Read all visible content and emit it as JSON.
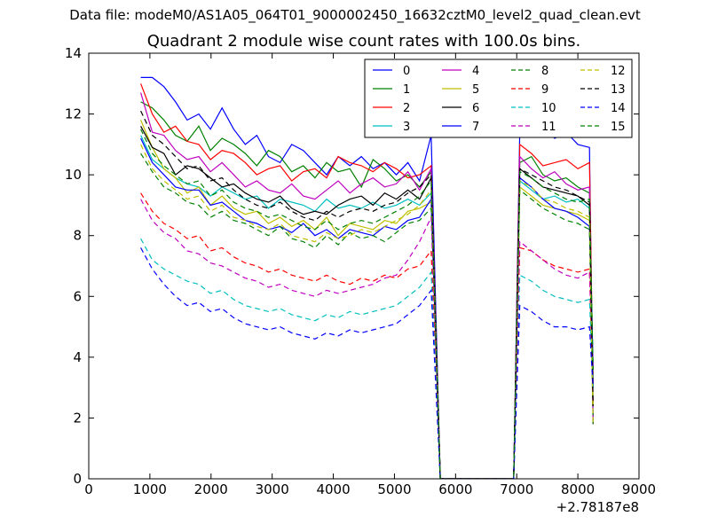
{
  "suptitle": "Data file: modeM0/AS1A05_064T01_9000002450_16632cztM0_level2_quad_clean.evt",
  "chart_data": {
    "type": "line",
    "title": "Quadrant 2 module wise count rates with 100.0s bins.",
    "xlabel": "",
    "ylabel": "",
    "xlim": [
      0,
      9000
    ],
    "ylim": [
      0,
      14
    ],
    "x_offset_label": "+2.78187e8",
    "x_ticks": [
      "0",
      "1000",
      "2000",
      "3000",
      "4000",
      "5000",
      "6000",
      "7000",
      "8000",
      "9000"
    ],
    "y_ticks": [
      "0",
      "2",
      "4",
      "6",
      "8",
      "10",
      "12",
      "14"
    ],
    "grid": false,
    "legend_position": "top-right",
    "series": [
      {
        "name": "0",
        "color": "#0000ff",
        "dash": "solid",
        "seg1": [
          13.2,
          13.2,
          12.9,
          12.4,
          11.8,
          12.0,
          11.5,
          12.2,
          11.5,
          11.0,
          11.3,
          10.6,
          10.4,
          11.0,
          10.8,
          10.4,
          10.0,
          10.6,
          10.3,
          10.6,
          10.2,
          10.4,
          10.0,
          10.4,
          9.8,
          11.3
        ],
        "seg2": [
          11.5,
          11.8,
          11.6,
          11.2,
          11.4,
          11.0,
          10.9
        ]
      },
      {
        "name": "1",
        "color": "#008000",
        "dash": "solid",
        "seg1": [
          12.4,
          12.2,
          11.8,
          11.3,
          11.1,
          11.6,
          10.8,
          11.2,
          11.0,
          10.7,
          10.3,
          10.8,
          10.6,
          10.1,
          10.3,
          9.9,
          10.4,
          10.1,
          10.2,
          9.6,
          10.5,
          10.2,
          9.8,
          10.0,
          9.6,
          10.1
        ],
        "seg2": [
          10.4,
          10.6,
          10.0,
          9.8,
          9.9,
          9.6,
          9.4
        ]
      },
      {
        "name": "2",
        "color": "#ff0000",
        "dash": "solid",
        "seg1": [
          13.0,
          12.0,
          11.4,
          11.6,
          11.1,
          11.0,
          10.5,
          10.8,
          10.7,
          10.4,
          10.0,
          10.2,
          10.3,
          9.8,
          10.1,
          10.2,
          9.9,
          10.6,
          10.4,
          10.3,
          10.1,
          10.4,
          10.2,
          9.9,
          10.0,
          10.3
        ],
        "seg2": [
          11.0,
          10.7,
          10.3,
          10.4,
          10.5,
          10.2,
          10.4
        ]
      },
      {
        "name": "3",
        "color": "#00bfbf",
        "dash": "solid",
        "seg1": [
          11.3,
          10.5,
          10.2,
          9.9,
          9.7,
          9.6,
          9.3,
          9.6,
          9.4,
          9.2,
          9.3,
          8.9,
          9.2,
          9.1,
          9.0,
          8.8,
          9.2,
          8.9,
          9.0,
          8.9,
          9.1,
          8.9,
          9.0,
          9.2,
          9.0,
          9.4
        ],
        "seg2": [
          9.8,
          9.5,
          9.2,
          9.3,
          9.1,
          9.2,
          8.9
        ]
      },
      {
        "name": "4",
        "color": "#bf00bf",
        "dash": "solid",
        "seg1": [
          12.7,
          11.4,
          11.3,
          10.8,
          10.5,
          10.6,
          10.1,
          10.4,
          10.0,
          9.6,
          9.8,
          9.5,
          9.4,
          9.7,
          9.3,
          9.2,
          9.5,
          9.8,
          9.4,
          9.7,
          9.9,
          9.6,
          9.7,
          10.1,
          9.5,
          10.2
        ],
        "seg2": [
          10.6,
          10.2,
          9.9,
          10.1,
          9.7,
          9.5,
          9.6
        ]
      },
      {
        "name": "5",
        "color": "#bfbf00",
        "dash": "solid",
        "seg1": [
          11.8,
          10.9,
          10.2,
          9.9,
          9.4,
          9.6,
          9.0,
          9.3,
          8.9,
          8.7,
          8.8,
          8.4,
          8.6,
          8.3,
          8.5,
          8.2,
          8.6,
          8.0,
          8.4,
          8.3,
          8.2,
          8.5,
          8.4,
          8.8,
          8.9,
          9.1
        ],
        "seg2": [
          9.6,
          9.3,
          9.0,
          8.9,
          8.8,
          8.7,
          8.5
        ]
      },
      {
        "name": "6",
        "color": "#000000",
        "dash": "solid",
        "seg1": [
          11.6,
          10.9,
          10.7,
          10.0,
          10.3,
          10.2,
          9.9,
          9.6,
          9.7,
          9.4,
          9.2,
          9.1,
          9.3,
          8.9,
          8.7,
          8.8,
          8.7,
          9.0,
          9.2,
          9.3,
          9.0,
          9.4,
          9.2,
          9.5,
          9.2,
          9.9
        ],
        "seg2": [
          10.2,
          9.9,
          9.6,
          9.5,
          9.4,
          9.3,
          9.0
        ]
      },
      {
        "name": "7",
        "color": "#0000ff",
        "dash": "solid",
        "seg1": [
          11.2,
          10.4,
          10.0,
          9.6,
          9.5,
          9.5,
          9.0,
          9.1,
          8.8,
          8.5,
          8.4,
          8.2,
          8.3,
          8.1,
          8.4,
          8.0,
          8.2,
          7.9,
          8.2,
          8.1,
          8.0,
          8.3,
          8.2,
          8.5,
          8.6,
          9.2
        ],
        "seg2": [
          9.9,
          9.6,
          9.2,
          8.9,
          8.8,
          8.6,
          8.3
        ]
      },
      {
        "name": "8",
        "color": "#008000",
        "dash": "dashed",
        "seg1": [
          10.7,
          10.1,
          9.6,
          9.4,
          9.1,
          9.0,
          8.6,
          8.8,
          8.5,
          8.4,
          8.2,
          8.0,
          8.3,
          7.9,
          7.8,
          7.6,
          8.0,
          7.7,
          8.1,
          7.9,
          8.0,
          7.8,
          8.1,
          8.4,
          8.5,
          8.9
        ],
        "seg2": [
          9.5,
          9.2,
          8.9,
          8.7,
          8.5,
          8.4,
          8.2
        ]
      },
      {
        "name": "9",
        "color": "#ff0000",
        "dash": "dashed",
        "seg1": [
          9.4,
          8.8,
          8.4,
          8.2,
          7.9,
          8.0,
          7.5,
          7.6,
          7.3,
          7.1,
          7.0,
          6.8,
          6.9,
          6.7,
          6.6,
          6.5,
          6.7,
          6.5,
          6.4,
          6.6,
          6.5,
          6.7,
          6.6,
          6.9,
          7.0,
          7.5
        ],
        "seg2": [
          7.6,
          7.5,
          7.2,
          7.0,
          6.9,
          6.8,
          6.9
        ]
      },
      {
        "name": "10",
        "color": "#00bfbf",
        "dash": "dashed",
        "seg1": [
          7.9,
          7.2,
          6.9,
          6.7,
          6.5,
          6.4,
          6.1,
          6.2,
          5.9,
          5.7,
          5.6,
          5.5,
          5.6,
          5.4,
          5.3,
          5.2,
          5.4,
          5.3,
          5.5,
          5.4,
          5.5,
          5.6,
          5.7,
          6.0,
          6.3,
          6.8
        ],
        "seg2": [
          6.7,
          6.5,
          6.2,
          6.0,
          5.9,
          5.8,
          5.9
        ]
      },
      {
        "name": "11",
        "color": "#bf00bf",
        "dash": "dashed",
        "seg1": [
          9.2,
          8.5,
          8.1,
          7.9,
          7.5,
          7.4,
          7.1,
          7.0,
          6.8,
          6.6,
          6.5,
          6.3,
          6.4,
          6.2,
          6.1,
          6.0,
          6.2,
          6.1,
          6.2,
          6.3,
          6.4,
          6.6,
          6.7,
          7.2,
          7.8,
          8.6
        ],
        "seg2": [
          7.8,
          7.5,
          7.2,
          6.9,
          6.7,
          6.6,
          6.8
        ]
      },
      {
        "name": "12",
        "color": "#bfbf00",
        "dash": "dashed",
        "seg1": [
          11.0,
          10.2,
          9.8,
          9.5,
          9.2,
          9.3,
          8.8,
          9.0,
          8.6,
          8.5,
          8.3,
          8.2,
          8.4,
          8.0,
          7.9,
          7.8,
          8.1,
          7.9,
          8.0,
          8.2,
          8.1,
          8.3,
          8.5,
          8.7,
          9.0,
          9.5
        ],
        "seg2": [
          9.8,
          9.6,
          9.2,
          9.1,
          8.9,
          8.8,
          8.6
        ]
      },
      {
        "name": "13",
        "color": "#000000",
        "dash": "dashed",
        "seg1": [
          12.1,
          11.3,
          11.0,
          10.6,
          10.2,
          10.3,
          9.8,
          9.9,
          9.5,
          9.2,
          9.0,
          8.9,
          9.1,
          8.8,
          8.6,
          8.5,
          8.8,
          8.6,
          8.8,
          8.9,
          8.8,
          9.0,
          9.1,
          9.4,
          9.6,
          10.0
        ],
        "seg2": [
          10.2,
          10.0,
          9.8,
          9.6,
          9.5,
          9.3,
          9.1
        ]
      },
      {
        "name": "14",
        "color": "#0000ff",
        "dash": "dashed",
        "seg1": [
          7.6,
          6.9,
          6.4,
          6.0,
          5.7,
          5.8,
          5.5,
          5.6,
          5.3,
          5.1,
          5.0,
          4.9,
          5.0,
          4.8,
          4.7,
          4.6,
          4.8,
          4.7,
          4.9,
          4.8,
          4.9,
          5.0,
          5.1,
          5.4,
          5.7,
          6.2
        ],
        "seg2": [
          5.7,
          5.5,
          5.2,
          5.0,
          5.0,
          4.9,
          5.0
        ]
      },
      {
        "name": "15",
        "color": "#008000",
        "dash": "dashed",
        "seg1": [
          11.5,
          10.7,
          10.3,
          10.0,
          9.7,
          9.8,
          9.3,
          9.5,
          9.1,
          8.9,
          8.8,
          8.6,
          8.7,
          8.5,
          8.3,
          8.2,
          8.5,
          8.2,
          8.4,
          8.5,
          8.4,
          8.6,
          8.8,
          9.0,
          9.3,
          9.8
        ],
        "seg2": [
          10.1,
          9.9,
          9.6,
          9.4,
          9.2,
          9.1,
          9.2
        ]
      }
    ]
  }
}
